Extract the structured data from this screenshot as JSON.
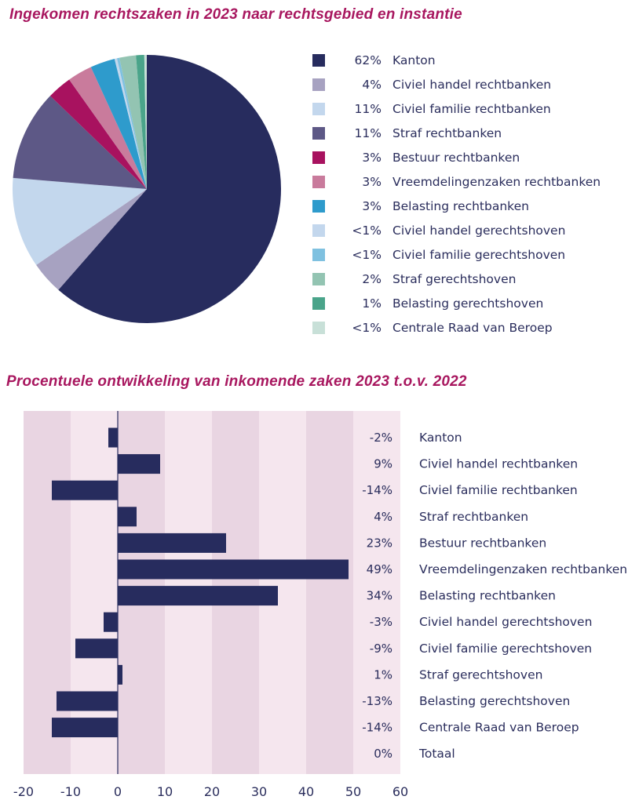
{
  "chart_data": [
    {
      "type": "pie",
      "title": "Ingekomen rechtszaken in 2023 naar rechtsgebied en instantie",
      "legend_position": "right",
      "slices": [
        {
          "label": "Kanton",
          "pct_label": "62%",
          "value": 62,
          "color": "#272c5e"
        },
        {
          "label": "Civiel handel rechtbanken",
          "pct_label": "4%",
          "value": 4,
          "color": "#a7a2c1"
        },
        {
          "label": "Civiel familie rechtbanken",
          "pct_label": "11%",
          "value": 11,
          "color": "#c3d7ed"
        },
        {
          "label": "Straf rechtbanken",
          "pct_label": "11%",
          "value": 11,
          "color": "#5d5886"
        },
        {
          "label": "Bestuur rechtbanken",
          "pct_label": "3%",
          "value": 3,
          "color": "#a8125f"
        },
        {
          "label": "Vreemdelingenzaken rechtbanken",
          "pct_label": "3%",
          "value": 3,
          "color": "#c97b9c"
        },
        {
          "label": "Belasting rechtbanken",
          "pct_label": "3%",
          "value": 3,
          "color": "#2e9bcc"
        },
        {
          "label": "Civiel handel gerechtshoven",
          "pct_label": "<1%",
          "value": 0.3,
          "color": "#c3d7ed"
        },
        {
          "label": "Civiel familie gerechtshoven",
          "pct_label": "<1%",
          "value": 0.3,
          "color": "#7fc1e0"
        },
        {
          "label": "Straf gerechtshoven",
          "pct_label": "2%",
          "value": 2,
          "color": "#93c4b2"
        },
        {
          "label": "Belasting gerechtshoven",
          "pct_label": "1%",
          "value": 1,
          "color": "#4aa48a"
        },
        {
          "label": "Centrale Raad van Beroep",
          "pct_label": "<1%",
          "value": 0.3,
          "color": "#c8e0d8"
        }
      ]
    },
    {
      "type": "bar",
      "orientation": "horizontal",
      "title": "Procentuele ontwikkeling van inkomende zaken 2023 t.o.v. 2022",
      "categories": [
        "Kanton",
        "Civiel handel rechtbanken",
        "Civiel familie rechtbanken",
        "Straf rechtbanken",
        "Bestuur rechtbanken",
        "Vreemdelingenzaken rechtbanken",
        "Belasting rechtbanken",
        "Civiel handel gerechtshoven",
        "Civiel familie gerechtshoven",
        "Straf gerechtshoven",
        "Belasting gerechtshoven",
        "Centrale Raad van Beroep",
        "Totaal"
      ],
      "values": [
        -2,
        9,
        -14,
        4,
        23,
        49,
        34,
        -3,
        -9,
        1,
        -13,
        -14,
        0
      ],
      "value_labels": [
        "-2%",
        "9%",
        "-14%",
        "4%",
        "23%",
        "49%",
        "34%",
        "-3%",
        "-9%",
        "1%",
        "-13%",
        "-14%",
        "0%"
      ],
      "xlim": [
        -20,
        60
      ],
      "xticks": [
        "-20",
        "-10",
        "0",
        "10",
        "20",
        "30",
        "40",
        "50",
        "60"
      ],
      "bar_color": "#272c5e",
      "band_colors": [
        "#e9d5e2",
        "#f5e6ee"
      ],
      "grid": false
    }
  ]
}
